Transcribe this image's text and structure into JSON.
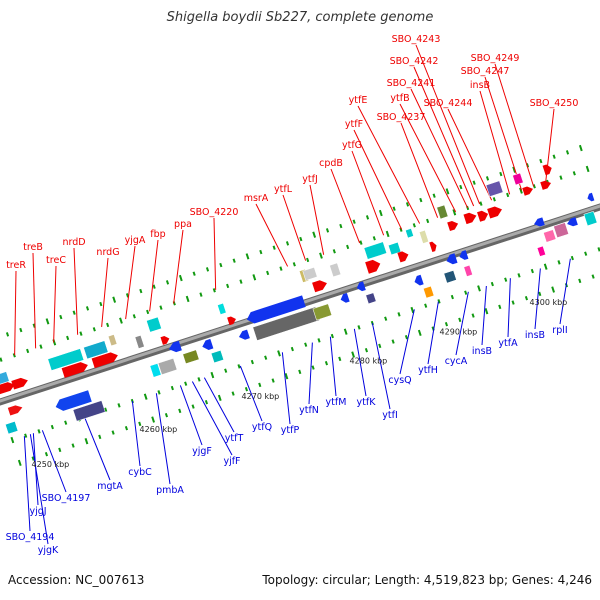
{
  "title": "Shigella boydii Sb227, complete genome",
  "footer": {
    "accession": "Accession: NC_007613",
    "summary": "Topology: circular; Length: 4,519,823 bp; Genes: 4,246"
  },
  "colors": {
    "forward_label": "#ee0000",
    "reverse_label": "#0000dd",
    "backbone": "#888888",
    "tick": "#119911"
  },
  "scale_labels": [
    "4250 kbp",
    "4260 kbp",
    "4270 kbp",
    "4280 kbp",
    "4290 kbp",
    "4300 kbp"
  ],
  "forward_genes": [
    "treR",
    "treB",
    "treC",
    "nrdD",
    "nrdG",
    "yjgA",
    "fbp",
    "ppa",
    "SBO_4220",
    "msrA",
    "ytfL",
    "ytfJ",
    "cpdB",
    "ytfG",
    "ytfF",
    "ytfE",
    "SBO_4237",
    "ytfB",
    "SBO_4241",
    "SBO_4242",
    "SBO_4243",
    "SBO_4244",
    "insB",
    "SBO_4247",
    "SBO_4249",
    "SBO_4250"
  ],
  "reverse_genes": [
    "SBO_4194",
    "yjgK",
    "yjgJ",
    "SBO_4197",
    "mgtA",
    "cybC",
    "pmbA",
    "yjgF",
    "yjfF",
    "ytfT",
    "ytfQ",
    "ytfP",
    "ytfN",
    "ytfM",
    "ytfK",
    "ytfI",
    "cysQ",
    "ytfH",
    "cycA",
    "insB",
    "ytfA",
    "insB",
    "rplI"
  ]
}
